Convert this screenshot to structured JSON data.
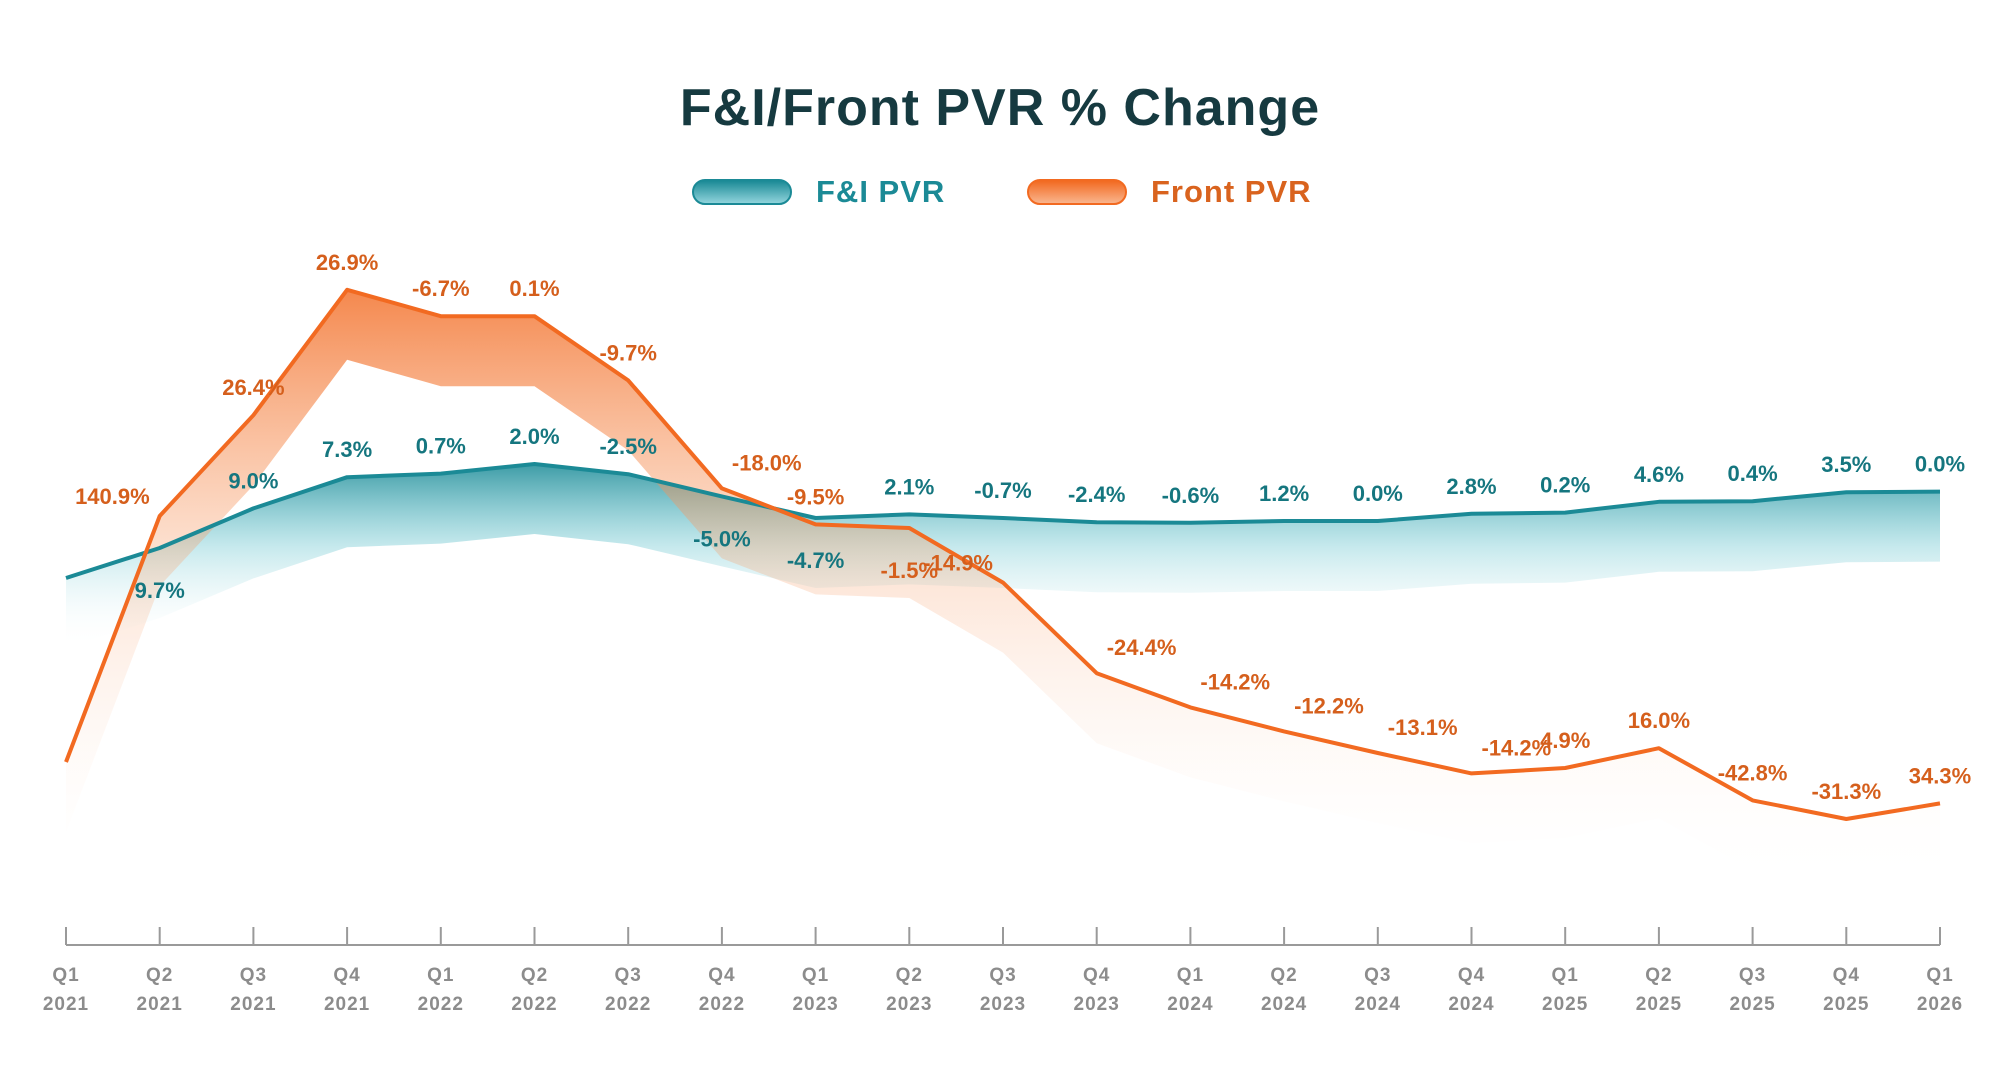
{
  "chart_data": {
    "type": "line",
    "title": "F&I/Front PVR % Change",
    "xlabel": "",
    "ylabel": "",
    "legend_position": "top-center",
    "grid": false,
    "categories": [
      [
        "Q1",
        "2021"
      ],
      [
        "Q2",
        "2021"
      ],
      [
        "Q3",
        "2021"
      ],
      [
        "Q4",
        "2021"
      ],
      [
        "Q1",
        "2022"
      ],
      [
        "Q2",
        "2022"
      ],
      [
        "Q3",
        "2022"
      ],
      [
        "Q4",
        "2022"
      ],
      [
        "Q1",
        "2023"
      ],
      [
        "Q2",
        "2023"
      ],
      [
        "Q3",
        "2023"
      ],
      [
        "Q4",
        "2023"
      ],
      [
        "Q1",
        "2024"
      ],
      [
        "Q2",
        "2024"
      ],
      [
        "Q3",
        "2024"
      ],
      [
        "Q4",
        "2024"
      ],
      [
        "Q1",
        "2025"
      ],
      [
        "Q2",
        "2025"
      ],
      [
        "Q3",
        "2025"
      ],
      [
        "Q4",
        "2025"
      ],
      [
        "Q1",
        "2026"
      ]
    ],
    "series": [
      {
        "name": "F&I PVR",
        "color": "#1b8a96",
        "labels": [
          "",
          "9.7%",
          "9.0%",
          "7.3%",
          "0.7%",
          "2.0%",
          "-2.5%",
          "-5.0%",
          "-4.7%",
          "2.1%",
          "-0.7%",
          "-2.4%",
          "-0.6%",
          "1.2%",
          "0.0%",
          "2.8%",
          "0.2%",
          "4.6%",
          "0.4%",
          "3.5%",
          "0.0%"
        ],
        "label_side": [
          "",
          "below",
          "above",
          "above",
          "above",
          "above",
          "above",
          "below",
          "below",
          "above",
          "above",
          "above",
          "above",
          "above",
          "above",
          "above",
          "above",
          "above",
          "above",
          "above",
          "above"
        ],
        "relative_level": [
          0.0,
          0.05,
          0.116,
          0.168,
          0.174,
          0.19,
          0.173,
          0.136,
          0.1,
          0.106,
          0.1,
          0.093,
          0.092,
          0.095,
          0.095,
          0.107,
          0.109,
          0.127,
          0.128,
          0.143,
          0.144
        ]
      },
      {
        "name": "Front PVR",
        "color": "#f26a21",
        "labels": [
          "",
          "140.9%",
          "26.4%",
          "26.9%",
          "-6.7%",
          "0.1%",
          "-9.7%",
          "-18.0%",
          "-9.5%",
          "-1.5%",
          "-14.9%",
          "-24.4%",
          "-14.2%",
          "-12.2%",
          "-13.1%",
          "-14.2%",
          "4.9%",
          "16.0%",
          "-42.8%",
          "-31.3%",
          "34.3%"
        ],
        "label_side": [
          "",
          "left",
          "above",
          "above",
          "above",
          "above",
          "above",
          "right",
          "above",
          "below",
          "left",
          "right",
          "right",
          "right",
          "right",
          "right",
          "above",
          "above",
          "above",
          "above",
          "above"
        ],
        "relative_level": [
          0.0,
          0.41,
          0.578,
          0.787,
          0.743,
          0.743,
          0.636,
          0.456,
          0.396,
          0.39,
          0.299,
          0.148,
          0.091,
          0.051,
          0.015,
          -0.019,
          -0.01,
          0.023,
          -0.064,
          -0.095,
          -0.069
        ]
      }
    ]
  }
}
